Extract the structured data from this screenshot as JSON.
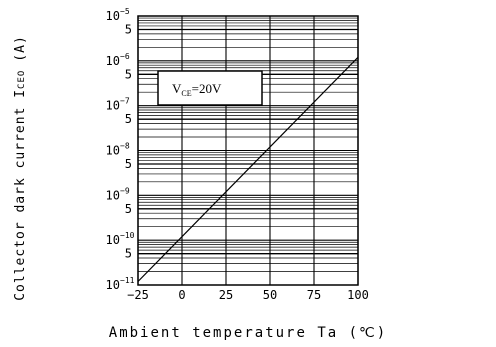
{
  "chart_data": {
    "type": "line",
    "xlabel": "Ambient temperature Ta (℃)",
    "ylabel": "Collector dark current I",
    "ylabel_sub": "CEO",
    "ylabel_unit": "(A)",
    "x_ticks": [
      "−25",
      "0",
      "25",
      "50",
      "75",
      "100"
    ],
    "y_tick_labels": [
      {
        "decade": -11,
        "base": "10",
        "exp": "−11"
      },
      {
        "decade": -10,
        "base": "10",
        "exp": "−10"
      },
      {
        "decade": -9,
        "base": "10",
        "exp": "−9"
      },
      {
        "decade": -8,
        "base": "10",
        "exp": "−8"
      },
      {
        "decade": -7,
        "base": "10",
        "exp": "−7"
      },
      {
        "decade": -6,
        "base": "10",
        "exp": "−6"
      },
      {
        "decade": -5,
        "base": "10",
        "exp": "−5"
      }
    ],
    "y_five_label": "5",
    "xlim": [
      -25,
      100
    ],
    "ylim": [
      1e-11,
      1e-05
    ],
    "yscale": "log",
    "grid": true,
    "series": [
      {
        "x": [
          -25,
          100
        ],
        "y": [
          1.2e-11,
          1.2e-06
        ]
      }
    ],
    "annotation": {
      "prefix": "V",
      "sub": "CE",
      "suffix": "=20V"
    }
  }
}
